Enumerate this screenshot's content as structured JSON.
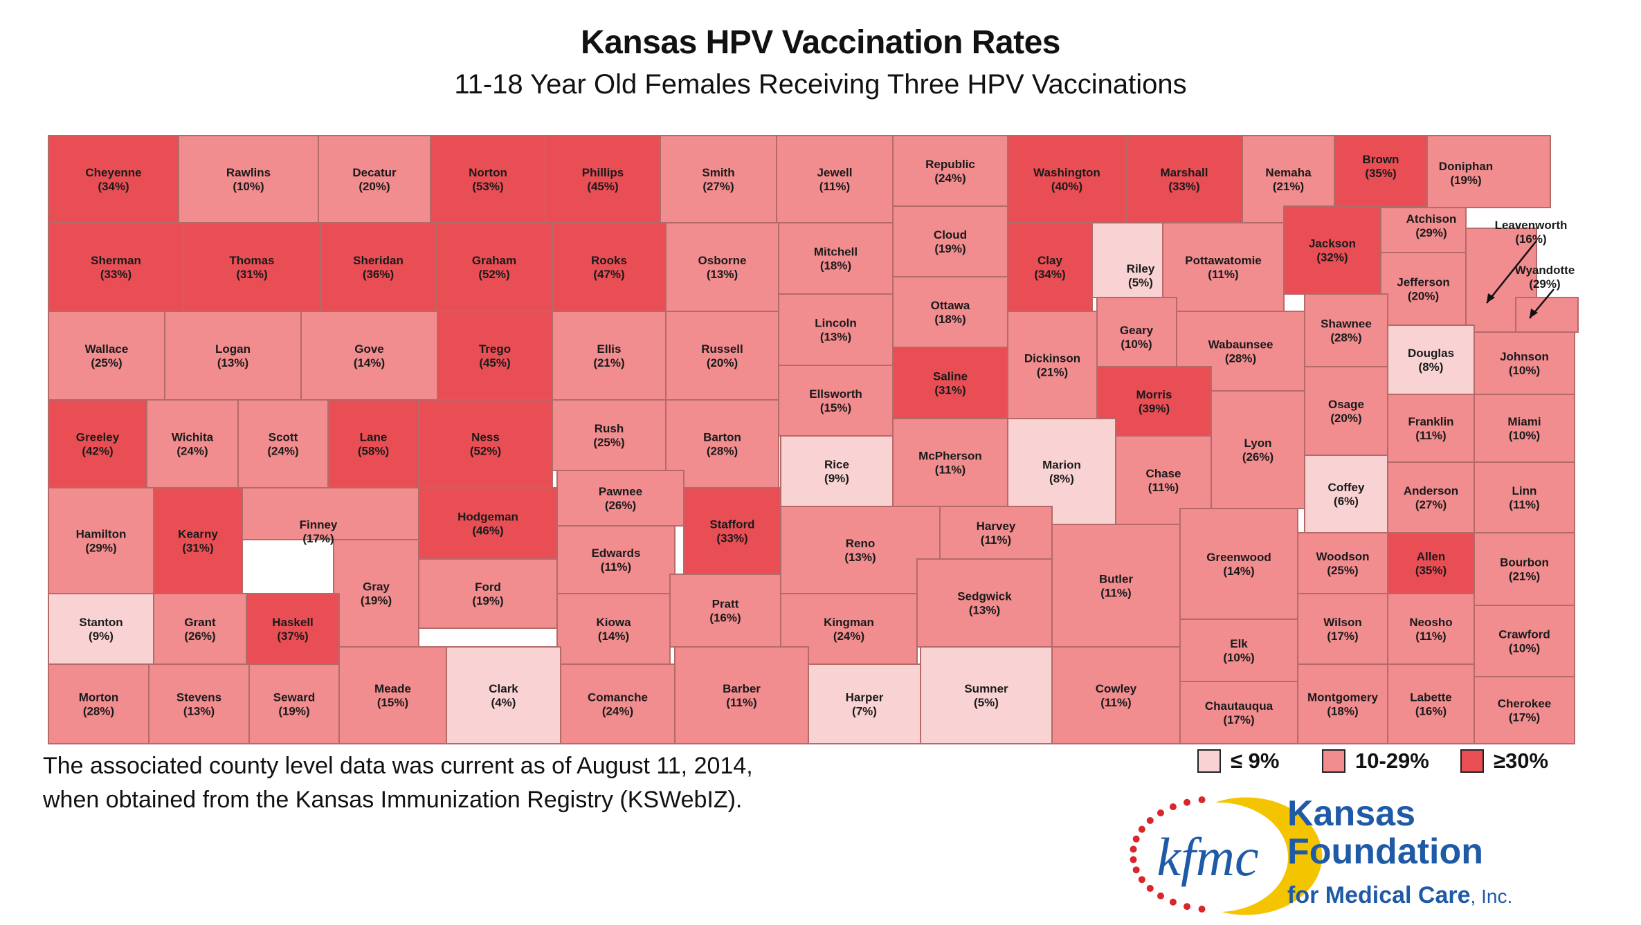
{
  "title": "Kansas HPV Vaccination Rates",
  "subtitle": "11-18 Year Old Females Receiving Three HPV Vaccinations",
  "notes": [
    "The associated county level data was current as of August 11, 2014,",
    "when obtained from the Kansas Immunization Registry (KSWebIZ)."
  ],
  "legend": [
    {
      "label": "≤  9%",
      "color": "#f9d2d3"
    },
    {
      "label": "10-29%",
      "color": "#f18c8f"
    },
    {
      "label": "≥30%",
      "color": "#e94e55"
    }
  ],
  "colors": {
    "low": "#f9d2d3",
    "mid": "#f18c8f",
    "high": "#e94e55",
    "border": "#b56a6a"
  },
  "logo": {
    "mark": "kfmc",
    "line1": "Kansas",
    "line2": "Foundation",
    "line3": "for Medical Care",
    "suffix": "Inc.",
    "text_color": "#1f5aa6",
    "accent_color": "#f5c400",
    "dot_color": "#d9252c"
  },
  "counties": [
    {
      "name": "Cheyenne",
      "rate": 34
    },
    {
      "name": "Rawlins",
      "rate": 10
    },
    {
      "name": "Decatur",
      "rate": 20
    },
    {
      "name": "Norton",
      "rate": 53
    },
    {
      "name": "Phillips",
      "rate": 45
    },
    {
      "name": "Smith",
      "rate": 27
    },
    {
      "name": "Jewell",
      "rate": 11
    },
    {
      "name": "Republic",
      "rate": 24
    },
    {
      "name": "Washington",
      "rate": 40
    },
    {
      "name": "Marshall",
      "rate": 33
    },
    {
      "name": "Nemaha",
      "rate": 21
    },
    {
      "name": "Brown",
      "rate": 35
    },
    {
      "name": "Doniphan",
      "rate": 19
    },
    {
      "name": "Sherman",
      "rate": 33
    },
    {
      "name": "Thomas",
      "rate": 31
    },
    {
      "name": "Sheridan",
      "rate": 36
    },
    {
      "name": "Graham",
      "rate": 52
    },
    {
      "name": "Rooks",
      "rate": 47
    },
    {
      "name": "Osborne",
      "rate": 13
    },
    {
      "name": "Mitchell",
      "rate": 18
    },
    {
      "name": "Cloud",
      "rate": 19
    },
    {
      "name": "Clay",
      "rate": 34
    },
    {
      "name": "Riley",
      "rate": 5
    },
    {
      "name": "Pottawatomie",
      "rate": 11
    },
    {
      "name": "Jackson",
      "rate": 32
    },
    {
      "name": "Atchison",
      "rate": 29
    },
    {
      "name": "Leavenworth",
      "rate": 16
    },
    {
      "name": "Jefferson",
      "rate": 20
    },
    {
      "name": "Wyandotte",
      "rate": 29
    },
    {
      "name": "Wallace",
      "rate": 25
    },
    {
      "name": "Logan",
      "rate": 13
    },
    {
      "name": "Gove",
      "rate": 14
    },
    {
      "name": "Trego",
      "rate": 45
    },
    {
      "name": "Ellis",
      "rate": 21
    },
    {
      "name": "Russell",
      "rate": 20
    },
    {
      "name": "Lincoln",
      "rate": 13
    },
    {
      "name": "Ottawa",
      "rate": 18
    },
    {
      "name": "Dickinson",
      "rate": 21
    },
    {
      "name": "Geary",
      "rate": 10
    },
    {
      "name": "Wabaunsee",
      "rate": 28
    },
    {
      "name": "Shawnee",
      "rate": 28
    },
    {
      "name": "Douglas",
      "rate": 8
    },
    {
      "name": "Johnson",
      "rate": 10
    },
    {
      "name": "Greeley",
      "rate": 42
    },
    {
      "name": "Wichita",
      "rate": 24
    },
    {
      "name": "Scott",
      "rate": 24
    },
    {
      "name": "Lane",
      "rate": 58
    },
    {
      "name": "Ness",
      "rate": 52
    },
    {
      "name": "Rush",
      "rate": 25
    },
    {
      "name": "Barton",
      "rate": 28
    },
    {
      "name": "Ellsworth",
      "rate": 15
    },
    {
      "name": "Saline",
      "rate": 31
    },
    {
      "name": "Morris",
      "rate": 39
    },
    {
      "name": "Osage",
      "rate": 20
    },
    {
      "name": "Franklin",
      "rate": 11
    },
    {
      "name": "Miami",
      "rate": 10
    },
    {
      "name": "Hamilton",
      "rate": 29
    },
    {
      "name": "Kearny",
      "rate": 31
    },
    {
      "name": "Finney",
      "rate": 17
    },
    {
      "name": "Hodgeman",
      "rate": 46
    },
    {
      "name": "Pawnee",
      "rate": 26
    },
    {
      "name": "Stafford",
      "rate": 33
    },
    {
      "name": "Rice",
      "rate": 9
    },
    {
      "name": "McPherson",
      "rate": 11
    },
    {
      "name": "Marion",
      "rate": 8
    },
    {
      "name": "Chase",
      "rate": 11
    },
    {
      "name": "Lyon",
      "rate": 26
    },
    {
      "name": "Coffey",
      "rate": 6
    },
    {
      "name": "Anderson",
      "rate": 27
    },
    {
      "name": "Linn",
      "rate": 11
    },
    {
      "name": "Gray",
      "rate": 19
    },
    {
      "name": "Edwards",
      "rate": 11
    },
    {
      "name": "Reno",
      "rate": 13
    },
    {
      "name": "Harvey",
      "rate": 11
    },
    {
      "name": "Butler",
      "rate": 11
    },
    {
      "name": "Greenwood",
      "rate": 14
    },
    {
      "name": "Woodson",
      "rate": 25
    },
    {
      "name": "Allen",
      "rate": 35
    },
    {
      "name": "Bourbon",
      "rate": 21
    },
    {
      "name": "Stanton",
      "rate": 9
    },
    {
      "name": "Grant",
      "rate": 26
    },
    {
      "name": "Haskell",
      "rate": 37
    },
    {
      "name": "Ford",
      "rate": 19
    },
    {
      "name": "Kiowa",
      "rate": 14
    },
    {
      "name": "Pratt",
      "rate": 16
    },
    {
      "name": "Kingman",
      "rate": 24
    },
    {
      "name": "Sedgwick",
      "rate": 13
    },
    {
      "name": "Elk",
      "rate": 10
    },
    {
      "name": "Wilson",
      "rate": 17
    },
    {
      "name": "Neosho",
      "rate": 11
    },
    {
      "name": "Crawford",
      "rate": 10
    },
    {
      "name": "Morton",
      "rate": 28
    },
    {
      "name": "Stevens",
      "rate": 13
    },
    {
      "name": "Seward",
      "rate": 19
    },
    {
      "name": "Meade",
      "rate": 15
    },
    {
      "name": "Clark",
      "rate": 4
    },
    {
      "name": "Comanche",
      "rate": 24
    },
    {
      "name": "Barber",
      "rate": 11
    },
    {
      "name": "Harper",
      "rate": 7
    },
    {
      "name": "Sumner",
      "rate": 5
    },
    {
      "name": "Cowley",
      "rate": 11
    },
    {
      "name": "Chautauqua",
      "rate": 17
    },
    {
      "name": "Montgomery",
      "rate": 18
    },
    {
      "name": "Labette",
      "rate": 16
    },
    {
      "name": "Cherokee",
      "rate": 17
    }
  ]
}
